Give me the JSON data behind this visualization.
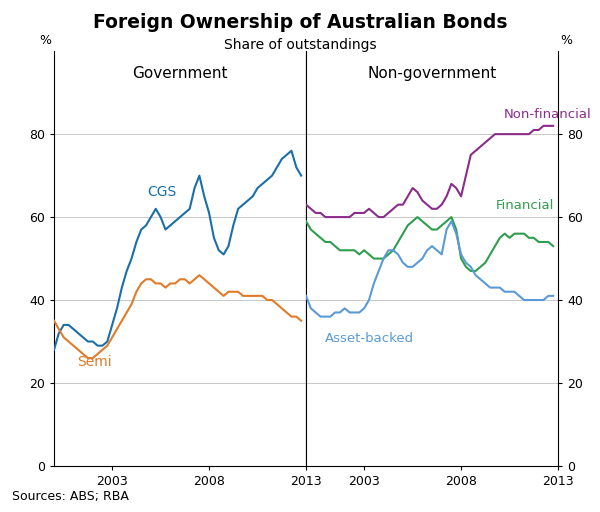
{
  "title": "Foreign Ownership of Australian Bonds",
  "subtitle": "Share of outstandings",
  "source": "Sources: ABS; RBA",
  "ylim": [
    0,
    100
  ],
  "yticks": [
    0,
    20,
    40,
    60,
    80
  ],
  "left_panel_label": "Government",
  "right_panel_label": "Non-government",
  "ylabel_left": "%",
  "ylabel_right": "%",
  "cgs_color": "#1a6fa8",
  "semi_color": "#e07b2a",
  "nonfinancial_color": "#8b2c8b",
  "financial_color": "#2e9e4e",
  "assetbacked_color": "#5b9bd5",
  "line_width": 1.5,
  "cgs_label": "CGS",
  "semi_label": "Semi",
  "nonfinancial_label": "Non-financial",
  "financial_label": "Financial",
  "assetbacked_label": "Asset-backed",
  "cgs_data": {
    "years": [
      2000,
      2000.25,
      2000.5,
      2000.75,
      2001,
      2001.25,
      2001.5,
      2001.75,
      2002,
      2002.25,
      2002.5,
      2002.75,
      2003,
      2003.25,
      2003.5,
      2003.75,
      2004,
      2004.25,
      2004.5,
      2004.75,
      2005,
      2005.25,
      2005.5,
      2005.75,
      2006,
      2006.25,
      2006.5,
      2006.75,
      2007,
      2007.25,
      2007.5,
      2007.75,
      2008,
      2008.25,
      2008.5,
      2008.75,
      2009,
      2009.25,
      2009.5,
      2009.75,
      2010,
      2010.25,
      2010.5,
      2010.75,
      2011,
      2011.25,
      2011.5,
      2011.75,
      2012,
      2012.25,
      2012.5,
      2012.75
    ],
    "values": [
      28,
      32,
      34,
      34,
      33,
      32,
      31,
      30,
      30,
      29,
      29,
      30,
      34,
      38,
      43,
      47,
      50,
      54,
      57,
      58,
      60,
      62,
      60,
      57,
      58,
      59,
      60,
      61,
      62,
      67,
      70,
      65,
      61,
      55,
      52,
      51,
      53,
      58,
      62,
      63,
      64,
      65,
      67,
      68,
      69,
      70,
      72,
      74,
      75,
      76,
      72,
      70
    ]
  },
  "semi_data": {
    "years": [
      2000,
      2000.25,
      2000.5,
      2000.75,
      2001,
      2001.25,
      2001.5,
      2001.75,
      2002,
      2002.25,
      2002.5,
      2002.75,
      2003,
      2003.25,
      2003.5,
      2003.75,
      2004,
      2004.25,
      2004.5,
      2004.75,
      2005,
      2005.25,
      2005.5,
      2005.75,
      2006,
      2006.25,
      2006.5,
      2006.75,
      2007,
      2007.25,
      2007.5,
      2007.75,
      2008,
      2008.25,
      2008.5,
      2008.75,
      2009,
      2009.25,
      2009.5,
      2009.75,
      2010,
      2010.25,
      2010.5,
      2010.75,
      2011,
      2011.25,
      2011.5,
      2011.75,
      2012,
      2012.25,
      2012.5,
      2012.75
    ],
    "values": [
      35,
      33,
      31,
      30,
      29,
      28,
      27,
      26,
      26,
      27,
      28,
      29,
      31,
      33,
      35,
      37,
      39,
      42,
      44,
      45,
      45,
      44,
      44,
      43,
      44,
      44,
      45,
      45,
      44,
      45,
      46,
      45,
      44,
      43,
      42,
      41,
      42,
      42,
      42,
      41,
      41,
      41,
      41,
      41,
      40,
      40,
      39,
      38,
      37,
      36,
      36,
      35
    ]
  },
  "nonfinancial_data": {
    "years": [
      2000,
      2000.25,
      2000.5,
      2000.75,
      2001,
      2001.25,
      2001.5,
      2001.75,
      2002,
      2002.25,
      2002.5,
      2002.75,
      2003,
      2003.25,
      2003.5,
      2003.75,
      2004,
      2004.25,
      2004.5,
      2004.75,
      2005,
      2005.25,
      2005.5,
      2005.75,
      2006,
      2006.25,
      2006.5,
      2006.75,
      2007,
      2007.25,
      2007.5,
      2007.75,
      2008,
      2008.25,
      2008.5,
      2008.75,
      2009,
      2009.25,
      2009.5,
      2009.75,
      2010,
      2010.25,
      2010.5,
      2010.75,
      2011,
      2011.25,
      2011.5,
      2011.75,
      2012,
      2012.25,
      2012.5,
      2012.75
    ],
    "values": [
      63,
      62,
      61,
      61,
      60,
      60,
      60,
      60,
      60,
      60,
      61,
      61,
      61,
      62,
      61,
      60,
      60,
      61,
      62,
      63,
      63,
      65,
      67,
      66,
      64,
      63,
      62,
      62,
      63,
      65,
      68,
      67,
      65,
      70,
      75,
      76,
      77,
      78,
      79,
      80,
      80,
      80,
      80,
      80,
      80,
      80,
      80,
      81,
      81,
      82,
      82,
      82
    ]
  },
  "financial_data": {
    "years": [
      2000,
      2000.25,
      2000.5,
      2000.75,
      2001,
      2001.25,
      2001.5,
      2001.75,
      2002,
      2002.25,
      2002.5,
      2002.75,
      2003,
      2003.25,
      2003.5,
      2003.75,
      2004,
      2004.25,
      2004.5,
      2004.75,
      2005,
      2005.25,
      2005.5,
      2005.75,
      2006,
      2006.25,
      2006.5,
      2006.75,
      2007,
      2007.25,
      2007.5,
      2007.75,
      2008,
      2008.25,
      2008.5,
      2008.75,
      2009,
      2009.25,
      2009.5,
      2009.75,
      2010,
      2010.25,
      2010.5,
      2010.75,
      2011,
      2011.25,
      2011.5,
      2011.75,
      2012,
      2012.25,
      2012.5,
      2012.75
    ],
    "values": [
      59,
      57,
      56,
      55,
      54,
      54,
      53,
      52,
      52,
      52,
      52,
      51,
      52,
      51,
      50,
      50,
      50,
      51,
      52,
      54,
      56,
      58,
      59,
      60,
      59,
      58,
      57,
      57,
      58,
      59,
      60,
      57,
      50,
      48,
      47,
      47,
      48,
      49,
      51,
      53,
      55,
      56,
      55,
      56,
      56,
      56,
      55,
      55,
      54,
      54,
      54,
      53
    ]
  },
  "assetbacked_data": {
    "years": [
      2000,
      2000.25,
      2000.5,
      2000.75,
      2001,
      2001.25,
      2001.5,
      2001.75,
      2002,
      2002.25,
      2002.5,
      2002.75,
      2003,
      2003.25,
      2003.5,
      2003.75,
      2004,
      2004.25,
      2004.5,
      2004.75,
      2005,
      2005.25,
      2005.5,
      2005.75,
      2006,
      2006.25,
      2006.5,
      2006.75,
      2007,
      2007.25,
      2007.5,
      2007.75,
      2008,
      2008.25,
      2008.5,
      2008.75,
      2009,
      2009.25,
      2009.5,
      2009.75,
      2010,
      2010.25,
      2010.5,
      2010.75,
      2011,
      2011.25,
      2011.5,
      2011.75,
      2012,
      2012.25,
      2012.5,
      2012.75
    ],
    "values": [
      41,
      38,
      37,
      36,
      36,
      36,
      37,
      37,
      38,
      37,
      37,
      37,
      38,
      40,
      44,
      47,
      50,
      52,
      52,
      51,
      49,
      48,
      48,
      49,
      50,
      52,
      53,
      52,
      51,
      57,
      59,
      56,
      51,
      49,
      48,
      46,
      45,
      44,
      43,
      43,
      43,
      42,
      42,
      42,
      41,
      40,
      40,
      40,
      40,
      40,
      41,
      41
    ]
  },
  "xticks_left": [
    2003,
    2008,
    2013
  ],
  "xticks_right": [
    2003,
    2008,
    2013
  ],
  "xlim_left": [
    2000,
    2013
  ],
  "xlim_right": [
    2000,
    2013
  ],
  "background_color": "#ffffff",
  "grid_color": "#c8c8c8"
}
